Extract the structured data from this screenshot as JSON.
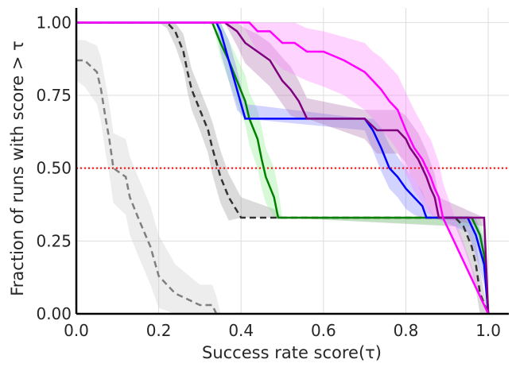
{
  "chart_data": {
    "type": "line",
    "xlabel": "Success rate score(τ)",
    "ylabel": "Fraction of runs with score  > τ",
    "xlim": [
      0.0,
      1.05
    ],
    "ylim": [
      0.0,
      1.05
    ],
    "xticks": [
      0.0,
      0.2,
      0.4,
      0.6,
      0.8,
      1.0
    ],
    "yticks": [
      0.0,
      0.25,
      0.5,
      0.75,
      1.0
    ],
    "xtick_labels": [
      "0.0",
      "0.2",
      "0.4",
      "0.6",
      "0.8",
      "1.0"
    ],
    "ytick_labels": [
      "0.00",
      "0.25",
      "0.50",
      "0.75",
      "1.00"
    ],
    "grid": true,
    "reference_line": {
      "y": 0.5,
      "color": "#ff0000",
      "style": "dotted"
    },
    "series": [
      {
        "color": "#7f7f7f",
        "dashed": true,
        "band_color": "#cccccc",
        "x": [
          0.0,
          0.02,
          0.05,
          0.06,
          0.07,
          0.08,
          0.09,
          0.12,
          0.13,
          0.15,
          0.18,
          0.2,
          0.24,
          0.3,
          0.33,
          0.34,
          0.35
        ],
        "y": [
          0.87,
          0.87,
          0.83,
          0.77,
          0.68,
          0.6,
          0.5,
          0.47,
          0.4,
          0.33,
          0.23,
          0.13,
          0.07,
          0.03,
          0.03,
          0.0,
          0.0
        ],
        "lower": [
          0.8,
          0.78,
          0.72,
          0.66,
          0.56,
          0.48,
          0.38,
          0.34,
          0.27,
          0.2,
          0.1,
          0.02,
          0.0,
          0.0,
          0.0,
          0.0,
          0.0
        ],
        "upper": [
          0.94,
          0.94,
          0.92,
          0.88,
          0.8,
          0.72,
          0.62,
          0.6,
          0.54,
          0.47,
          0.37,
          0.27,
          0.17,
          0.1,
          0.1,
          0.06,
          0.0
        ]
      },
      {
        "color": "#333333",
        "dashed": true,
        "band_color": "#999999",
        "x": [
          0.0,
          0.2,
          0.22,
          0.24,
          0.26,
          0.27,
          0.28,
          0.3,
          0.32,
          0.33,
          0.35,
          0.37,
          0.4,
          0.48,
          0.5,
          0.92,
          0.94,
          0.96,
          0.97,
          0.98,
          1.0
        ],
        "y": [
          1.0,
          1.0,
          1.0,
          0.97,
          0.9,
          0.83,
          0.77,
          0.7,
          0.63,
          0.57,
          0.47,
          0.4,
          0.33,
          0.33,
          0.33,
          0.33,
          0.3,
          0.23,
          0.17,
          0.07,
          0.0
        ],
        "lower": [
          1.0,
          1.0,
          0.98,
          0.92,
          0.84,
          0.76,
          0.7,
          0.63,
          0.55,
          0.48,
          0.38,
          0.32,
          0.33,
          0.33,
          0.33,
          0.3,
          0.23,
          0.15,
          0.08,
          0.0,
          0.0
        ],
        "upper": [
          1.0,
          1.0,
          1.0,
          1.0,
          0.96,
          0.9,
          0.84,
          0.77,
          0.7,
          0.66,
          0.56,
          0.48,
          0.4,
          0.36,
          0.33,
          0.33,
          0.33,
          0.3,
          0.25,
          0.15,
          0.0
        ]
      },
      {
        "color": "#008000",
        "dashed": false,
        "band_color": "#90ee90",
        "x": [
          0.0,
          0.33,
          0.35,
          0.37,
          0.39,
          0.41,
          0.42,
          0.44,
          0.45,
          0.46,
          0.48,
          0.49,
          0.5,
          0.96,
          0.98,
          0.99,
          1.0
        ],
        "y": [
          1.0,
          1.0,
          0.93,
          0.87,
          0.8,
          0.73,
          0.67,
          0.6,
          0.53,
          0.47,
          0.4,
          0.33,
          0.33,
          0.33,
          0.27,
          0.2,
          0.0
        ],
        "lower": [
          1.0,
          1.0,
          0.88,
          0.8,
          0.72,
          0.65,
          0.58,
          0.5,
          0.43,
          0.38,
          0.33,
          0.33,
          0.33,
          0.3,
          0.2,
          0.13,
          0.0
        ],
        "upper": [
          1.0,
          1.0,
          1.0,
          0.94,
          0.88,
          0.82,
          0.76,
          0.7,
          0.64,
          0.57,
          0.5,
          0.43,
          0.33,
          0.33,
          0.33,
          0.27,
          0.0
        ]
      },
      {
        "color": "#0000ff",
        "dashed": false,
        "band_color": "#8080ff",
        "x": [
          0.0,
          0.34,
          0.35,
          0.37,
          0.39,
          0.41,
          0.7,
          0.72,
          0.74,
          0.76,
          0.78,
          0.8,
          0.82,
          0.84,
          0.85,
          0.87,
          0.95,
          0.97,
          0.99,
          1.0
        ],
        "y": [
          1.0,
          1.0,
          0.97,
          0.87,
          0.77,
          0.67,
          0.67,
          0.63,
          0.57,
          0.5,
          0.47,
          0.43,
          0.4,
          0.37,
          0.33,
          0.33,
          0.33,
          0.27,
          0.17,
          0.0
        ],
        "lower": [
          1.0,
          1.0,
          0.9,
          0.8,
          0.7,
          0.67,
          0.63,
          0.56,
          0.49,
          0.43,
          0.4,
          0.36,
          0.34,
          0.33,
          0.33,
          0.33,
          0.28,
          0.2,
          0.1,
          0.0
        ],
        "upper": [
          1.0,
          1.0,
          1.0,
          0.94,
          0.84,
          0.72,
          0.67,
          0.67,
          0.64,
          0.58,
          0.54,
          0.5,
          0.46,
          0.42,
          0.38,
          0.33,
          0.33,
          0.33,
          0.25,
          0.0
        ]
      },
      {
        "color": "#800080",
        "dashed": false,
        "band_color": "#b070b0",
        "x": [
          0.0,
          0.36,
          0.39,
          0.41,
          0.44,
          0.47,
          0.5,
          0.52,
          0.54,
          0.56,
          0.7,
          0.73,
          0.78,
          0.8,
          0.81,
          0.83,
          0.84,
          0.85,
          0.86,
          0.87,
          0.88,
          0.99,
          1.0
        ],
        "y": [
          1.0,
          1.0,
          0.97,
          0.93,
          0.9,
          0.87,
          0.8,
          0.77,
          0.73,
          0.67,
          0.67,
          0.63,
          0.63,
          0.6,
          0.57,
          0.53,
          0.5,
          0.47,
          0.43,
          0.4,
          0.33,
          0.33,
          0.0
        ],
        "lower": [
          1.0,
          1.0,
          0.92,
          0.86,
          0.82,
          0.78,
          0.72,
          0.68,
          0.67,
          0.67,
          0.6,
          0.55,
          0.55,
          0.52,
          0.48,
          0.44,
          0.41,
          0.38,
          0.35,
          0.33,
          0.33,
          0.3,
          0.0
        ],
        "upper": [
          1.0,
          1.0,
          1.0,
          0.98,
          0.96,
          0.93,
          0.88,
          0.85,
          0.8,
          0.74,
          0.7,
          0.7,
          0.7,
          0.68,
          0.66,
          0.62,
          0.59,
          0.56,
          0.52,
          0.48,
          0.4,
          0.33,
          0.0
        ]
      },
      {
        "color": "#ff00ff",
        "dashed": false,
        "band_color": "#ff80ff",
        "x": [
          0.0,
          0.4,
          0.42,
          0.44,
          0.47,
          0.5,
          0.53,
          0.56,
          0.6,
          0.65,
          0.7,
          0.72,
          0.74,
          0.76,
          0.78,
          0.8,
          0.82,
          0.84,
          0.85,
          0.86,
          0.87,
          0.88,
          0.89,
          1.0
        ],
        "y": [
          1.0,
          1.0,
          1.0,
          0.97,
          0.97,
          0.93,
          0.93,
          0.9,
          0.9,
          0.87,
          0.83,
          0.8,
          0.77,
          0.73,
          0.7,
          0.63,
          0.57,
          0.53,
          0.5,
          0.47,
          0.43,
          0.4,
          0.33,
          0.0
        ],
        "lower": [
          1.0,
          1.0,
          0.95,
          0.9,
          0.88,
          0.84,
          0.82,
          0.8,
          0.78,
          0.75,
          0.7,
          0.67,
          0.63,
          0.6,
          0.56,
          0.48,
          0.42,
          0.38,
          0.35,
          0.34,
          0.33,
          0.33,
          0.33,
          0.0
        ],
        "upper": [
          1.0,
          1.0,
          1.0,
          1.0,
          1.0,
          1.0,
          1.0,
          0.98,
          0.97,
          0.95,
          0.93,
          0.9,
          0.88,
          0.85,
          0.82,
          0.76,
          0.7,
          0.65,
          0.62,
          0.6,
          0.56,
          0.52,
          0.45,
          0.0
        ]
      }
    ]
  }
}
